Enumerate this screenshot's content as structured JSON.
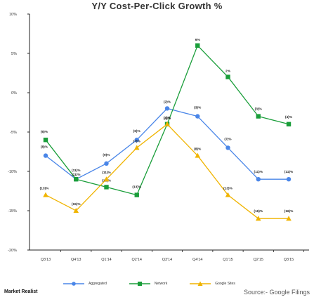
{
  "chart_data": {
    "type": "line",
    "title": "Y/Y Cost-Per-Click Growth %",
    "categories": [
      "Q3'13",
      "Q4'13",
      "Q1'14",
      "Q2'14",
      "Q3'14",
      "Q4'14",
      "Q1'15",
      "Q2'15",
      "Q3'15"
    ],
    "ylim": [
      -20,
      10
    ],
    "yticks": [
      10,
      5,
      0,
      -5,
      -10,
      -15,
      -20
    ],
    "ytick_labels": [
      "10%",
      "5%",
      "0%",
      "-5%",
      "-10%",
      "-15%",
      "-20%"
    ],
    "grid": false,
    "legend_position": "bottom",
    "series": [
      {
        "name": "Aggregated",
        "color": "#4a86e8",
        "marker": "circle",
        "values": [
          -8,
          -11,
          -9,
          -6,
          -2,
          -3,
          -7,
          -11,
          -11
        ],
        "labels": [
          "(8)%",
          "(11)%",
          "(9)%",
          "(6)%",
          "(2)%",
          "(3)%",
          "(7)%",
          "(11)%",
          "(11)%"
        ]
      },
      {
        "name": "Network",
        "color": "#1a9e3a",
        "marker": "square",
        "values": [
          -6,
          -11,
          -12,
          -13,
          -4,
          6,
          2,
          -3,
          -4
        ],
        "labels": [
          "(6)%",
          "(11)%",
          "(12)%",
          "(13)%",
          "(4)%",
          "6%",
          "2%",
          "(3)%",
          "(4)%"
        ]
      },
      {
        "name": "Google Sites",
        "color": "#f0b400",
        "marker": "triangle",
        "values": [
          -13,
          -15,
          -11,
          -7,
          -4,
          -8,
          -13,
          -16,
          -16
        ],
        "labels": [
          "(13)%",
          "(15)%",
          "(11)%",
          "(7)%",
          "(4)%",
          "(8)%",
          "(13)%",
          "(16)%",
          "(16)%"
        ]
      }
    ]
  },
  "footer": {
    "brand": "Market Realist",
    "source": "Source:- Google Filings"
  }
}
